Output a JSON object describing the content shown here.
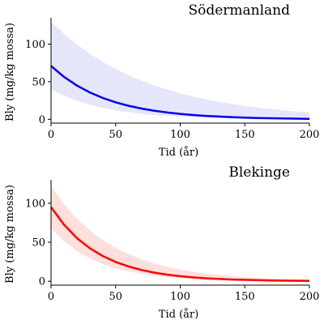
{
  "chart_data": [
    {
      "type": "line",
      "title": "Södermanland",
      "xlabel": "Tid (år)",
      "ylabel": "Bly (mg/kg mossa)",
      "xlim": [
        0,
        200
      ],
      "ylim": [
        -5,
        135
      ],
      "xticks": [
        "0",
        "50",
        "100",
        "150",
        "200"
      ],
      "yticks": [
        "0",
        "50",
        "100"
      ],
      "grid": false,
      "series": [
        {
          "color": "#0000ee",
          "band_color": "#e6e6fb",
          "x": [
            0,
            10,
            20,
            30,
            40,
            50,
            60,
            70,
            80,
            90,
            100,
            110,
            120,
            130,
            140,
            150,
            160,
            170,
            180,
            190,
            200
          ],
          "y": [
            71,
            56.5,
            45,
            35.8,
            28.5,
            22.7,
            18,
            14.4,
            11.4,
            9.1,
            7.2,
            5.8,
            4.6,
            3.7,
            2.9,
            2.3,
            1.8,
            1.5,
            1.2,
            0.9,
            0.7
          ],
          "upper": [
            130,
            113.9,
            99.8,
            87.4,
            76.6,
            67.1,
            58.8,
            51.5,
            45.1,
            39.5,
            34.6,
            30.3,
            26.6,
            23.3,
            20.4,
            17.9,
            15.6,
            13.7,
            12,
            10.5,
            9.2
          ],
          "lower": [
            40,
            31.4,
            24.6,
            19.3,
            15.2,
            11.9,
            9.4,
            7.4,
            5.8,
            4.5,
            3.6,
            2.8,
            2.2,
            1.7,
            1.3,
            1.1,
            0.8,
            0.7,
            0.5,
            0.4,
            0.3
          ]
        }
      ]
    },
    {
      "type": "line",
      "title": "Blekinge",
      "xlabel": "Tid (år)",
      "ylabel": "Bly (mg/kg mossa)",
      "xlim": [
        0,
        200
      ],
      "ylim": [
        -5,
        130
      ],
      "xticks": [
        "0",
        "50",
        "100",
        "150",
        "200"
      ],
      "yticks": [
        "0",
        "50",
        "100"
      ],
      "grid": false,
      "series": [
        {
          "color": "#ff0000",
          "band_color": "#fde0dc",
          "x": [
            0,
            10,
            20,
            30,
            40,
            50,
            60,
            70,
            80,
            90,
            100,
            110,
            120,
            130,
            140,
            150,
            160,
            170,
            180,
            190,
            200
          ],
          "y": [
            95,
            72.6,
            55.4,
            42.3,
            32.3,
            24.7,
            18.9,
            14.4,
            11,
            8.4,
            6.4,
            4.9,
            3.7,
            2.9,
            2.2,
            1.7,
            1.3,
            1,
            0.7,
            0.6,
            0.4
          ],
          "upper": [
            122,
            98.9,
            80.2,
            65.1,
            52.8,
            42.8,
            34.7,
            28.1,
            22.8,
            18.5,
            15,
            12.2,
            9.9,
            8,
            6.5,
            5.3,
            4.3,
            3.5,
            2.8,
            2.3,
            1.9
          ],
          "lower": [
            68,
            51.3,
            38.7,
            29.2,
            22,
            16.6,
            12.5,
            9.5,
            7.1,
            5.4,
            4.1,
            3.1,
            2.3,
            1.7,
            1.3,
            1,
            0.7,
            0.6,
            0.4,
            0.3,
            0.2
          ]
        }
      ]
    }
  ]
}
